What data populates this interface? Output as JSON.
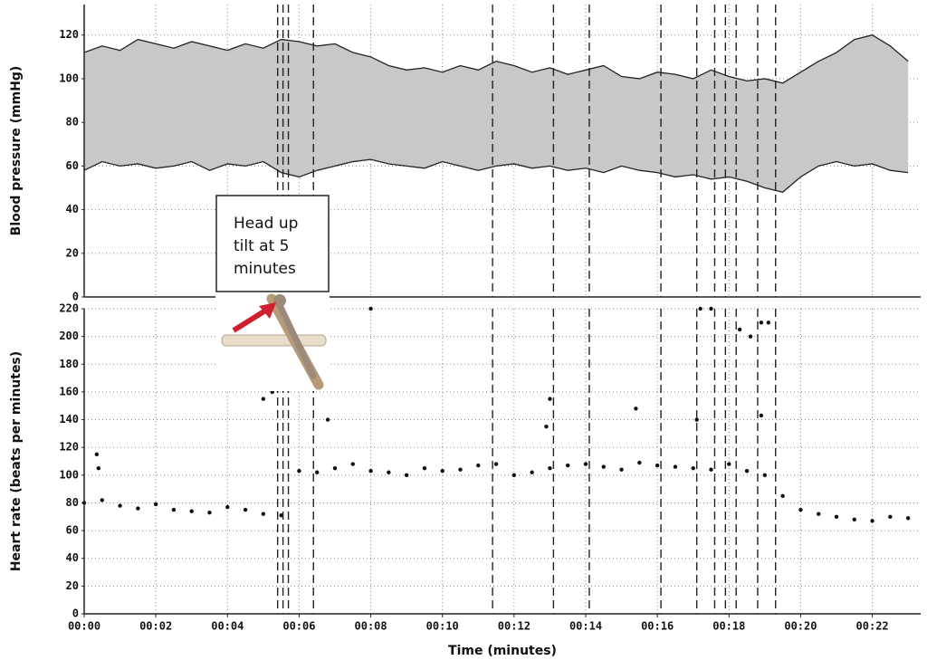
{
  "chart_data": [
    {
      "type": "band",
      "y_label": "Blood pressure (mmHg)",
      "color": "#222222",
      "fill": "#c8c8c8",
      "x": [
        0,
        0.5,
        1,
        1.5,
        2,
        2.5,
        3,
        3.5,
        4,
        4.5,
        5,
        5.5,
        6,
        6.5,
        7,
        7.5,
        8,
        8.5,
        9,
        9.5,
        10,
        10.5,
        11,
        11.5,
        12,
        12.5,
        13,
        13.5,
        14,
        14.5,
        15,
        15.5,
        16,
        16.5,
        17,
        17.5,
        18,
        18.5,
        19,
        19.5,
        20,
        20.5,
        21,
        21.5,
        22,
        22.5,
        23
      ],
      "high": [
        112,
        115,
        113,
        118,
        116,
        114,
        117,
        115,
        113,
        116,
        114,
        118,
        117,
        115,
        116,
        112,
        110,
        106,
        104,
        105,
        103,
        106,
        104,
        108,
        106,
        103,
        105,
        102,
        104,
        106,
        101,
        100,
        103,
        102,
        100,
        104,
        101,
        99,
        100,
        98,
        103,
        108,
        112,
        118,
        120,
        115,
        108
      ],
      "low": [
        58,
        62,
        60,
        61,
        59,
        60,
        62,
        58,
        61,
        60,
        62,
        57,
        55,
        58,
        60,
        62,
        63,
        61,
        60,
        59,
        62,
        60,
        58,
        60,
        61,
        59,
        60,
        58,
        59,
        57,
        60,
        58,
        57,
        55,
        56,
        54,
        55,
        53,
        50,
        48,
        55,
        60,
        62,
        60,
        61,
        58,
        57
      ],
      "xlim": [
        0,
        23.35
      ],
      "ylim": [
        0,
        134
      ],
      "yticks": [
        0,
        20,
        40,
        60,
        80,
        100,
        120
      ],
      "grid": true
    },
    {
      "type": "scatter",
      "y_label": "Heart rate (beats per minutes)",
      "x_label": "Time (minutes)",
      "color": "#111111",
      "x": [
        0,
        0.5,
        1,
        1.5,
        2,
        2.5,
        3,
        3.5,
        4,
        4.5,
        5,
        5.5,
        6,
        6.5,
        7,
        7.5,
        8,
        8.5,
        9,
        9.5,
        10,
        10.5,
        11,
        11.5,
        12,
        12.5,
        13,
        13.5,
        14,
        14.5,
        15,
        15.5,
        16,
        16.5,
        17,
        17.5,
        18,
        18.5,
        19,
        19.5,
        20,
        20.5,
        21,
        21.5,
        22,
        22.5,
        23,
        5.0,
        5.25,
        0.4,
        0.35,
        6.8,
        8.0,
        13.0,
        12.9,
        15.4,
        17.2,
        17.5,
        18.3,
        18.6,
        18.9,
        19.1,
        18.9,
        17.1
      ],
      "values": [
        80,
        82,
        78,
        76,
        79,
        75,
        74,
        73,
        77,
        75,
        72,
        71,
        103,
        102,
        105,
        108,
        103,
        102,
        100,
        105,
        103,
        104,
        107,
        108,
        100,
        102,
        105,
        107,
        108,
        106,
        104,
        109,
        107,
        106,
        105,
        104,
        108,
        103,
        100,
        85,
        75,
        72,
        70,
        68,
        67,
        70,
        69,
        155,
        160,
        105,
        115,
        140,
        220,
        155,
        135,
        148,
        220,
        220,
        205,
        200,
        210,
        210,
        143,
        140
      ],
      "xlim": [
        0,
        23.35
      ],
      "ylim": [
        0,
        220
      ],
      "yticks": [
        0,
        20,
        40,
        60,
        80,
        100,
        120,
        140,
        160,
        180,
        200,
        220
      ],
      "xticks": [
        {
          "value": 0,
          "label": "00:00"
        },
        {
          "value": 2,
          "label": "00:02"
        },
        {
          "value": 4,
          "label": "00:04"
        },
        {
          "value": 6,
          "label": "00:06"
        },
        {
          "value": 8,
          "label": "00:08"
        },
        {
          "value": 10,
          "label": "00:10"
        },
        {
          "value": 12,
          "label": "00:12"
        },
        {
          "value": 14,
          "label": "00:14"
        },
        {
          "value": 16,
          "label": "00:16"
        },
        {
          "value": 18,
          "label": "00:18"
        },
        {
          "value": 20,
          "label": "00:20"
        },
        {
          "value": 22,
          "label": "00:22"
        }
      ],
      "grid": true
    }
  ],
  "events": [
    5.4,
    5.55,
    5.7,
    6.4,
    11.4,
    13.1,
    14.1,
    16.1,
    17.1,
    17.6,
    17.9,
    18.2,
    18.8,
    19.3
  ],
  "annotation": [
    "Head up",
    "tilt at 5",
    "minutes"
  ]
}
